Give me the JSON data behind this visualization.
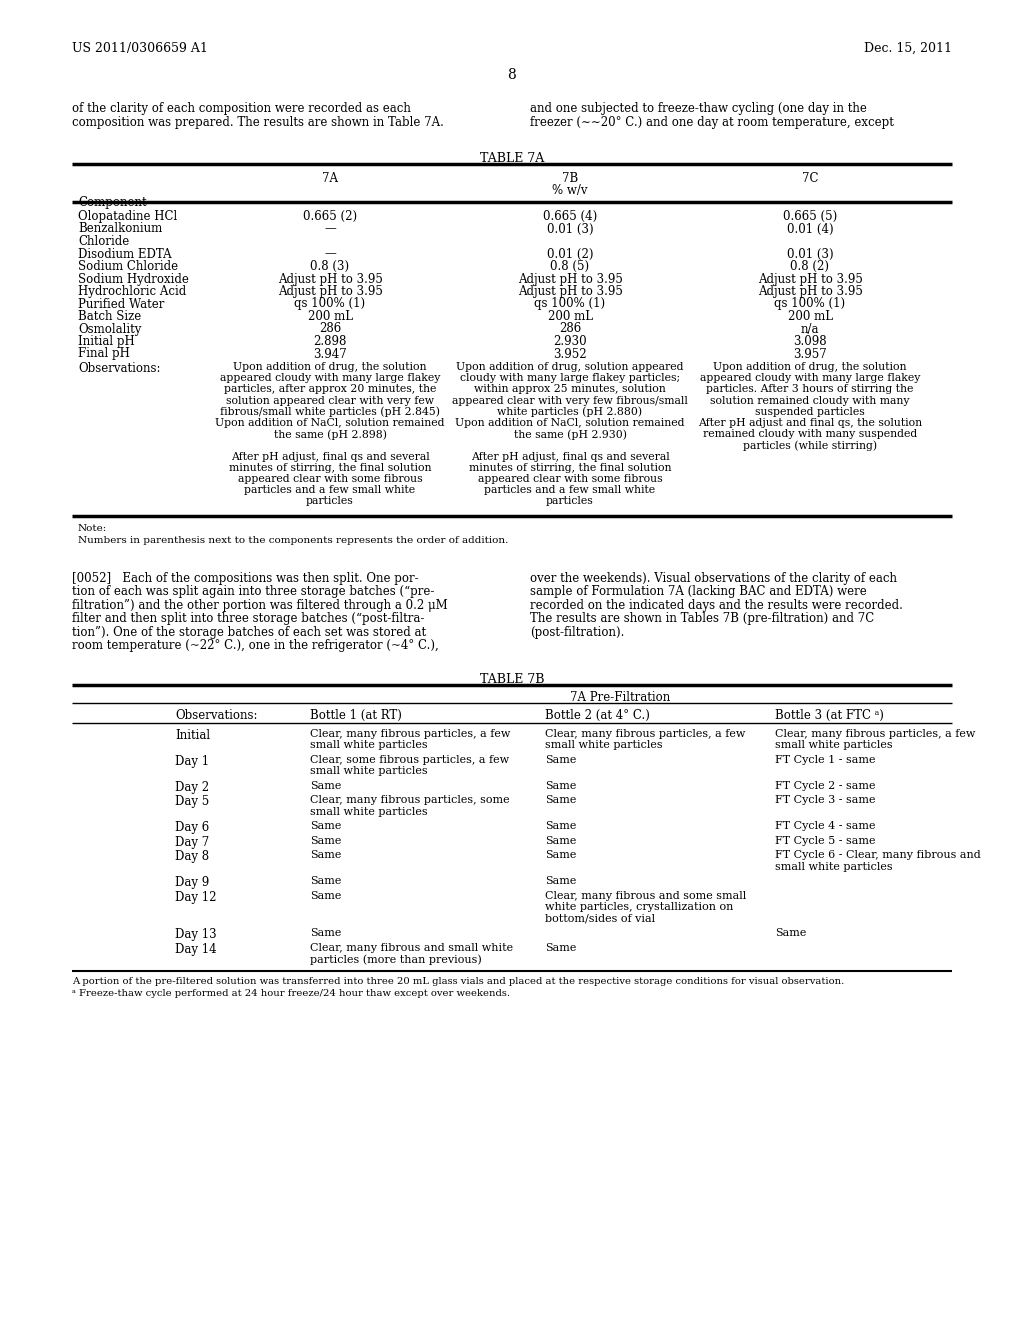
{
  "bg": "#ffffff",
  "hdr_left": "US 2011/0306659 A1",
  "hdr_right": "Dec. 15, 2011",
  "page_num": "8",
  "intro_left": [
    "of the clarity of each composition were recorded as each",
    "composition was prepared. The results are shown in Table 7A."
  ],
  "intro_right": [
    "and one subjected to freeze-thaw cycling (one day in the",
    "freezer (∼∼20° C.) and one day at room temperature, except"
  ],
  "t7a_title": "TABLE 7A",
  "t7a_col1": "7A",
  "t7a_col2a": "7B",
  "t7a_col2b": "% w/v",
  "t7a_col3": "7C",
  "t7a_comp": "Component",
  "t7a_data": [
    [
      "Olopatadine HCl",
      "0.665 (2)",
      "0.665 (4)",
      "0.665 (5)"
    ],
    [
      "Benzalkonium",
      "—",
      "0.01 (3)",
      "0.01 (4)"
    ],
    [
      "Chloride",
      "",
      "",
      ""
    ],
    [
      "Disodium EDTA",
      "—",
      "0.01 (2)",
      "0.01 (3)"
    ],
    [
      "Sodium Chloride",
      "0.8 (3)",
      "0.8 (5)",
      "0.8 (2)"
    ],
    [
      "Sodium Hydroxide",
      "Adjust pH to 3.95",
      "Adjust pH to 3.95",
      "Adjust pH to 3.95"
    ],
    [
      "Hydrochloric Acid",
      "Adjust pH to 3.95",
      "Adjust pH to 3.95",
      "Adjust pH to 3.95"
    ],
    [
      "Purified Water",
      "qs 100% (1)",
      "qs 100% (1)",
      "qs 100% (1)"
    ],
    [
      "Batch Size",
      "200 mL",
      "200 mL",
      "200 mL"
    ],
    [
      "Osmolality",
      "286",
      "286",
      "n/a"
    ],
    [
      "Initial pH",
      "2.898",
      "2.930",
      "3.098"
    ],
    [
      "Final pH",
      "3.947",
      "3.952",
      "3.957"
    ]
  ],
  "t7a_obs_label": "Observations:",
  "t7a_obs1": [
    "Upon addition of drug, the solution",
    "appeared cloudy with many large flakey",
    "particles, after approx 20 minutes, the",
    "solution appeared clear with very few",
    "fibrous/small white particles (pH 2.845)",
    "Upon addition of NaCl, solution remained",
    "the same (pH 2.898)",
    "",
    "After pH adjust, final qs and several",
    "minutes of stirring, the final solution",
    "appeared clear with some fibrous",
    "particles and a few small white",
    "particles"
  ],
  "t7a_obs2": [
    "Upon addition of drug, solution appeared",
    "cloudy with many large flakey particles;",
    "within approx 25 minutes, solution",
    "appeared clear with very few fibrous/small",
    "white particles (pH 2.880)",
    "Upon addition of NaCl, solution remained",
    "the same (pH 2.930)",
    "",
    "After pH adjust, final qs and several",
    "minutes of stirring, the final solution",
    "appeared clear with some fibrous",
    "particles and a few small white",
    "particles"
  ],
  "t7a_obs3": [
    "Upon addition of drug, the solution",
    "appeared cloudy with many large flakey",
    "particles. After 3 hours of stirring the",
    "solution remained cloudy with many",
    "suspended particles",
    "After pH adjust and final qs, the solution",
    "remained cloudy with many suspended",
    "particles (while stirring)"
  ],
  "note1": "Note:",
  "note2": "Numbers in parenthesis next to the components represents the order of addition.",
  "p52_left": [
    "[0052]   Each of the compositions was then split. One por-",
    "tion of each was split again into three storage batches (“pre-",
    "filtration”) and the other portion was filtered through a 0.2 μM",
    "filter and then split into three storage batches (“post-filtra-",
    "tion”). One of the storage batches of each set was stored at",
    "room temperature (~22° C.), one in the refrigerator (~4° C.),"
  ],
  "p52_right": [
    "over the weekends). Visual observations of the clarity of each",
    "sample of Formulation 7A (lacking BAC and EDTA) were",
    "recorded on the indicated days and the results were recorded.",
    "The results are shown in Tables 7B (pre-filtration) and 7C",
    "(post-filtration)."
  ],
  "t7b_title": "TABLE 7B",
  "t7b_sub": "7A Pre-Filtration",
  "t7b_hdrs": [
    "Observations:",
    "Bottle 1 (at RT)",
    "Bottle 2 (at 4° C.)",
    "Bottle 3 (at FTC ᵃ)"
  ],
  "t7b_rows": [
    [
      "Initial",
      "Clear, many fibrous particles, a few\nsmall white particles",
      "Clear, many fibrous particles, a few\nsmall white particles",
      "Clear, many fibrous particles, a few\nsmall white particles"
    ],
    [
      "Day 1",
      "Clear, some fibrous particles, a few\nsmall white particles",
      "Same",
      "FT Cycle 1 - same"
    ],
    [
      "Day 2",
      "Same",
      "Same",
      "FT Cycle 2 - same"
    ],
    [
      "Day 5",
      "Clear, many fibrous particles, some\nsmall white particles",
      "Same",
      "FT Cycle 3 - same"
    ],
    [
      "Day 6",
      "Same",
      "Same",
      "FT Cycle 4 - same"
    ],
    [
      "Day 7",
      "Same",
      "Same",
      "FT Cycle 5 - same"
    ],
    [
      "Day 8",
      "Same",
      "Same",
      "FT Cycle 6 - Clear, many fibrous and\nsmall white particles"
    ],
    [
      "Day 9",
      "Same",
      "Same",
      ""
    ],
    [
      "Day 12",
      "Same",
      "Clear, many fibrous and some small\nwhite particles, crystallization on\nbottom/sides of vial",
      ""
    ],
    [
      "Day 13",
      "Same",
      "",
      "Same"
    ],
    [
      "Day 14",
      "Clear, many fibrous and small white\nparticles (more than previous)",
      "Same",
      ""
    ]
  ],
  "fn1": "A portion of the pre-filtered solution was transferred into three 20 mL glass vials and placed at the respective storage conditions for visual observation.",
  "fn2": "ᵃ Freeze-thaw cycle performed at 24 hour freeze/24 hour thaw except over weekends."
}
